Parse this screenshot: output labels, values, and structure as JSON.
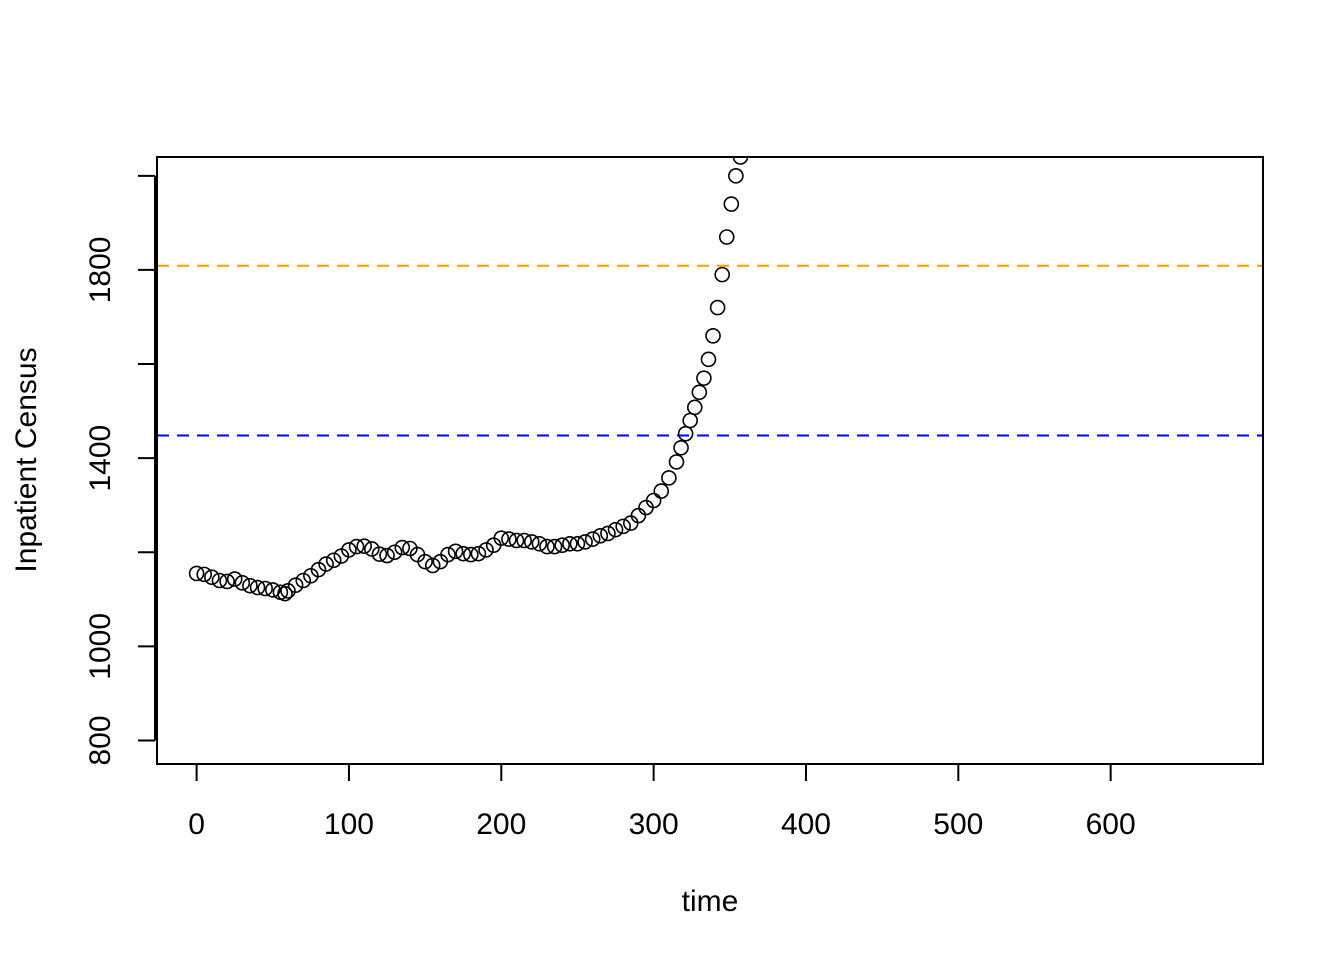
{
  "chart_data": {
    "type": "scatter",
    "title": "",
    "xlabel": "time",
    "ylabel": "Inpatient Census",
    "xlim": [
      -26,
      700
    ],
    "ylim": [
      750,
      2040
    ],
    "xticks": [
      0,
      100,
      200,
      300,
      400,
      500,
      600
    ],
    "yticks": [
      800,
      1000,
      1400,
      1800
    ],
    "ytick_marks": [
      800,
      1000,
      1200,
      1400,
      1600,
      1800,
      2000
    ],
    "grid": false,
    "legend": "none",
    "marker": "open-circle",
    "marker_color": "#000000",
    "reference_lines": [
      {
        "y": 1809,
        "color": "#ff9900",
        "style": "dashed"
      },
      {
        "y": 1448,
        "color": "#0000ff",
        "style": "dashed"
      }
    ],
    "series": [
      {
        "x": [
          0,
          5,
          10,
          15,
          20,
          25,
          30,
          35,
          40,
          45,
          50,
          55,
          58,
          60,
          65,
          70,
          75,
          80,
          85,
          90,
          95,
          100,
          105,
          110,
          115,
          120,
          125,
          130,
          135,
          140,
          145,
          150,
          155,
          160,
          165,
          170,
          175,
          180,
          185,
          190,
          195,
          200,
          205,
          210,
          215,
          220,
          225,
          230,
          235,
          240,
          245,
          250,
          255,
          260,
          265,
          270,
          275,
          280,
          285,
          290,
          295,
          300,
          305,
          310,
          315,
          318,
          321,
          324,
          327,
          330,
          333,
          336,
          339,
          342,
          345,
          348,
          351,
          354,
          357
        ],
        "y": [
          1155,
          1153,
          1147,
          1140,
          1138,
          1143,
          1135,
          1129,
          1125,
          1123,
          1120,
          1115,
          1112,
          1118,
          1130,
          1140,
          1150,
          1163,
          1175,
          1183,
          1192,
          1205,
          1212,
          1213,
          1207,
          1196,
          1193,
          1200,
          1210,
          1208,
          1195,
          1180,
          1172,
          1180,
          1195,
          1202,
          1197,
          1195,
          1197,
          1205,
          1215,
          1230,
          1228,
          1225,
          1225,
          1222,
          1218,
          1212,
          1212,
          1215,
          1218,
          1218,
          1222,
          1228,
          1235,
          1240,
          1248,
          1255,
          1262,
          1278,
          1295,
          1310,
          1330,
          1358,
          1392,
          1422,
          1452,
          1480,
          1508,
          1540,
          1570,
          1610,
          1660,
          1720,
          1790,
          1870,
          1940,
          2000,
          2040
        ]
      }
    ]
  }
}
